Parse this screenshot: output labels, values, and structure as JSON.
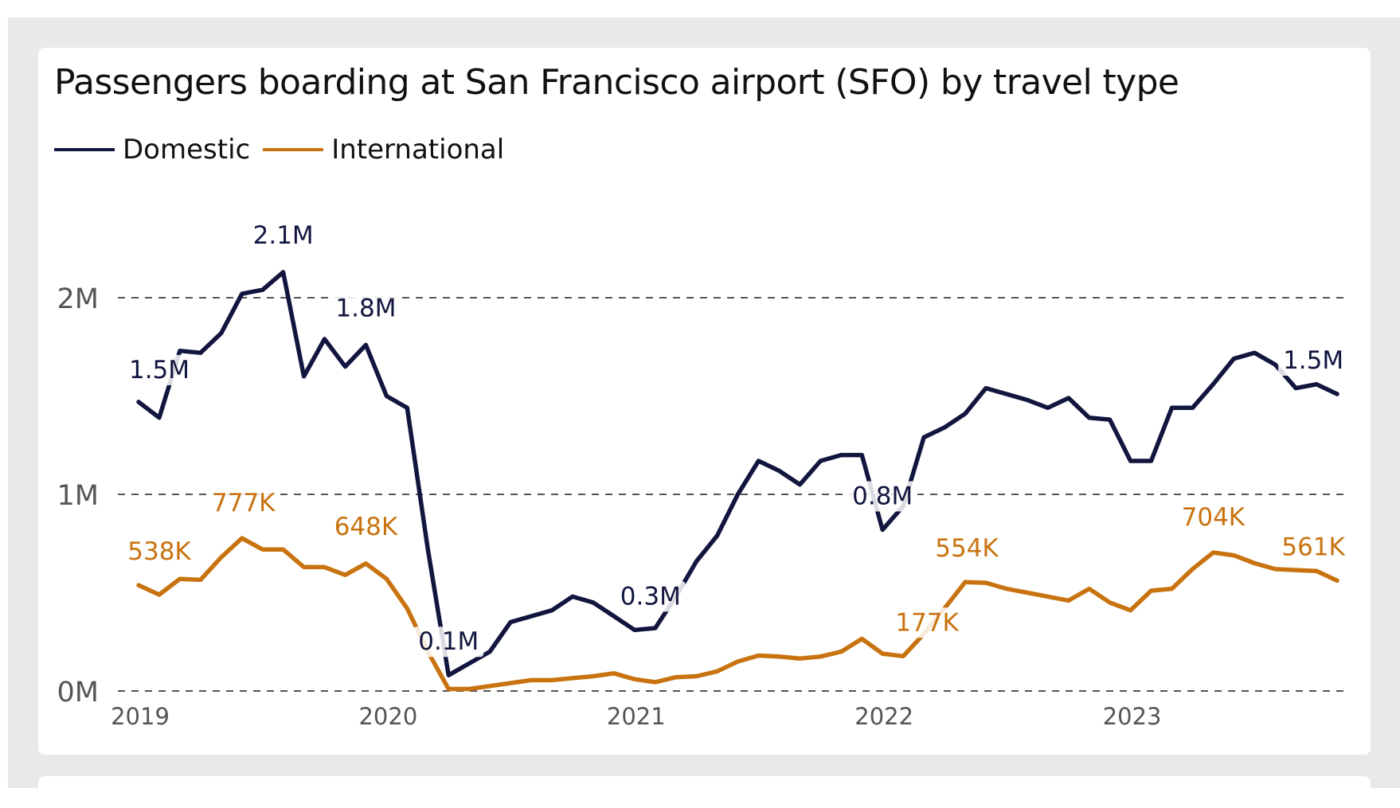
{
  "chart_data": {
    "type": "line",
    "title": "Passengers boarding at San Francisco airport (SFO) by travel type",
    "xlabel": "",
    "ylabel": "",
    "x_ticks": [
      "2019",
      "2020",
      "2021",
      "2022",
      "2023"
    ],
    "y_ticks": [
      {
        "value": 0,
        "label": "0M"
      },
      {
        "value": 1000000,
        "label": "1M"
      },
      {
        "value": 2000000,
        "label": "2M"
      }
    ],
    "ylim": [
      0,
      2200000
    ],
    "grid": true,
    "legend_position": "top-left",
    "x_start": "2019-01",
    "months": 59,
    "series": [
      {
        "name": "Domestic",
        "color": "#12163f",
        "values": [
          1470000,
          1390000,
          1730000,
          1720000,
          1820000,
          2020000,
          2040000,
          2130000,
          1600000,
          1790000,
          1650000,
          1760000,
          1500000,
          1440000,
          720000,
          80000,
          140000,
          200000,
          350000,
          380000,
          410000,
          480000,
          450000,
          380000,
          310000,
          320000,
          480000,
          660000,
          790000,
          1000000,
          1170000,
          1120000,
          1050000,
          1170000,
          1200000,
          1200000,
          820000,
          940000,
          1290000,
          1340000,
          1410000,
          1540000,
          1510000,
          1480000,
          1440000,
          1490000,
          1390000,
          1380000,
          1170000,
          1170000,
          1440000,
          1440000,
          1560000,
          1690000,
          1720000,
          1660000,
          1540000,
          1560000,
          1510000
        ],
        "labels": [
          {
            "index": 0,
            "text": "1.5M"
          },
          {
            "index": 7,
            "text": "2.1M"
          },
          {
            "index": 11,
            "text": "1.8M"
          },
          {
            "index": 15,
            "text": "0.1M"
          },
          {
            "index": 24,
            "text": "0.3M"
          },
          {
            "index": 36,
            "text": "0.8M"
          },
          {
            "index": 58,
            "text": "1.5M"
          }
        ]
      },
      {
        "name": "International",
        "color": "#c8730f",
        "values": [
          538000,
          490000,
          570000,
          565000,
          680000,
          777000,
          720000,
          720000,
          630000,
          630000,
          590000,
          648000,
          570000,
          420000,
          200000,
          10000,
          10000,
          25000,
          40000,
          55000,
          55000,
          65000,
          75000,
          90000,
          60000,
          45000,
          70000,
          75000,
          100000,
          150000,
          180000,
          175000,
          165000,
          175000,
          200000,
          265000,
          190000,
          177000,
          290000,
          420000,
          554000,
          550000,
          520000,
          500000,
          480000,
          460000,
          520000,
          450000,
          410000,
          510000,
          520000,
          620000,
          704000,
          690000,
          650000,
          620000,
          615000,
          610000,
          561000
        ],
        "labels": [
          {
            "index": 0,
            "text": "538K"
          },
          {
            "index": 5,
            "text": "777K"
          },
          {
            "index": 11,
            "text": "648K"
          },
          {
            "index": 37,
            "text": "177K"
          },
          {
            "index": 40,
            "text": "554K"
          },
          {
            "index": 52,
            "text": "704K"
          },
          {
            "index": 58,
            "text": "561K"
          }
        ]
      }
    ]
  }
}
